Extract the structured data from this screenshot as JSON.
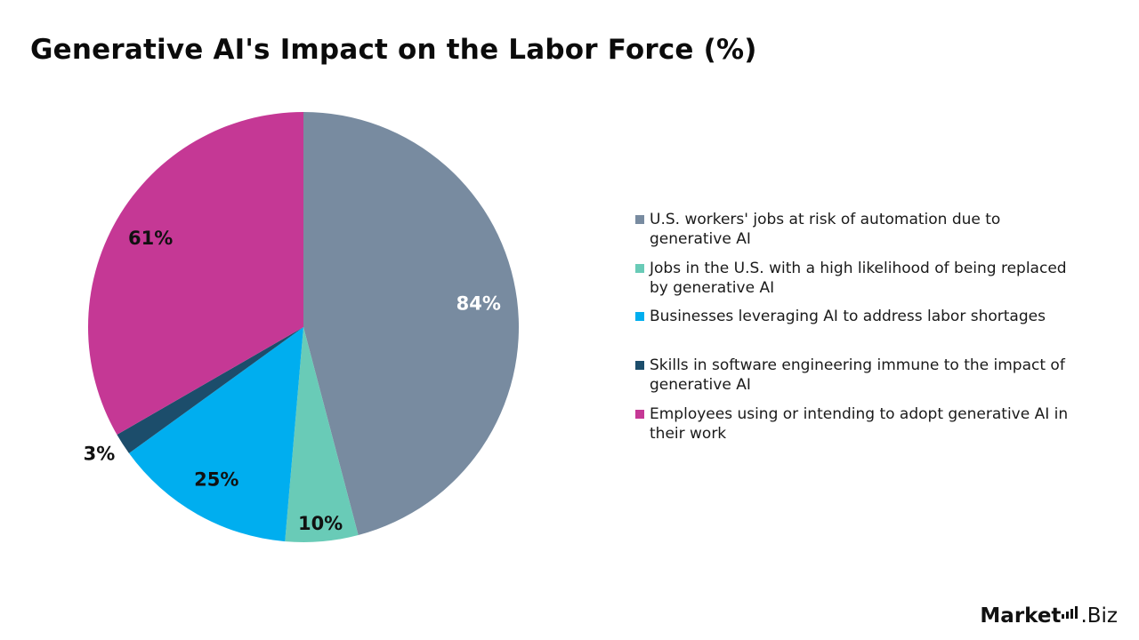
{
  "chart_data": {
    "type": "pie",
    "title": "Generative AI's Impact on the Labor Force (%)",
    "slices": [
      {
        "label": "U.S. workers' jobs at risk of automation due to generative AI",
        "value": 84,
        "display": "84%",
        "color": "#788ba0",
        "label_color": "#ffffff"
      },
      {
        "label": "Jobs in the U.S. with a high likelihood of being replaced by generative AI",
        "value": 10,
        "display": "10%",
        "color": "#69cbb7",
        "label_color": "#111111"
      },
      {
        "label": "Businesses leveraging AI to address labor shortages",
        "value": 25,
        "display": "25%",
        "color": "#00aeef",
        "label_color": "#111111"
      },
      {
        "label": "Skills in software engineering immune to the impact of generative AI",
        "value": 3,
        "display": "3%",
        "color": "#1c4d6b",
        "label_color": "#111111"
      },
      {
        "label": "Employees using or intending to adopt generative AI in their work",
        "value": 61,
        "display": "61%",
        "color": "#c53895",
        "label_color": "#111111"
      }
    ],
    "legend_position": "right"
  },
  "brand": {
    "name_bold": "Market",
    "name_rest": ".Biz",
    "icon": "bar-chart-icon"
  }
}
